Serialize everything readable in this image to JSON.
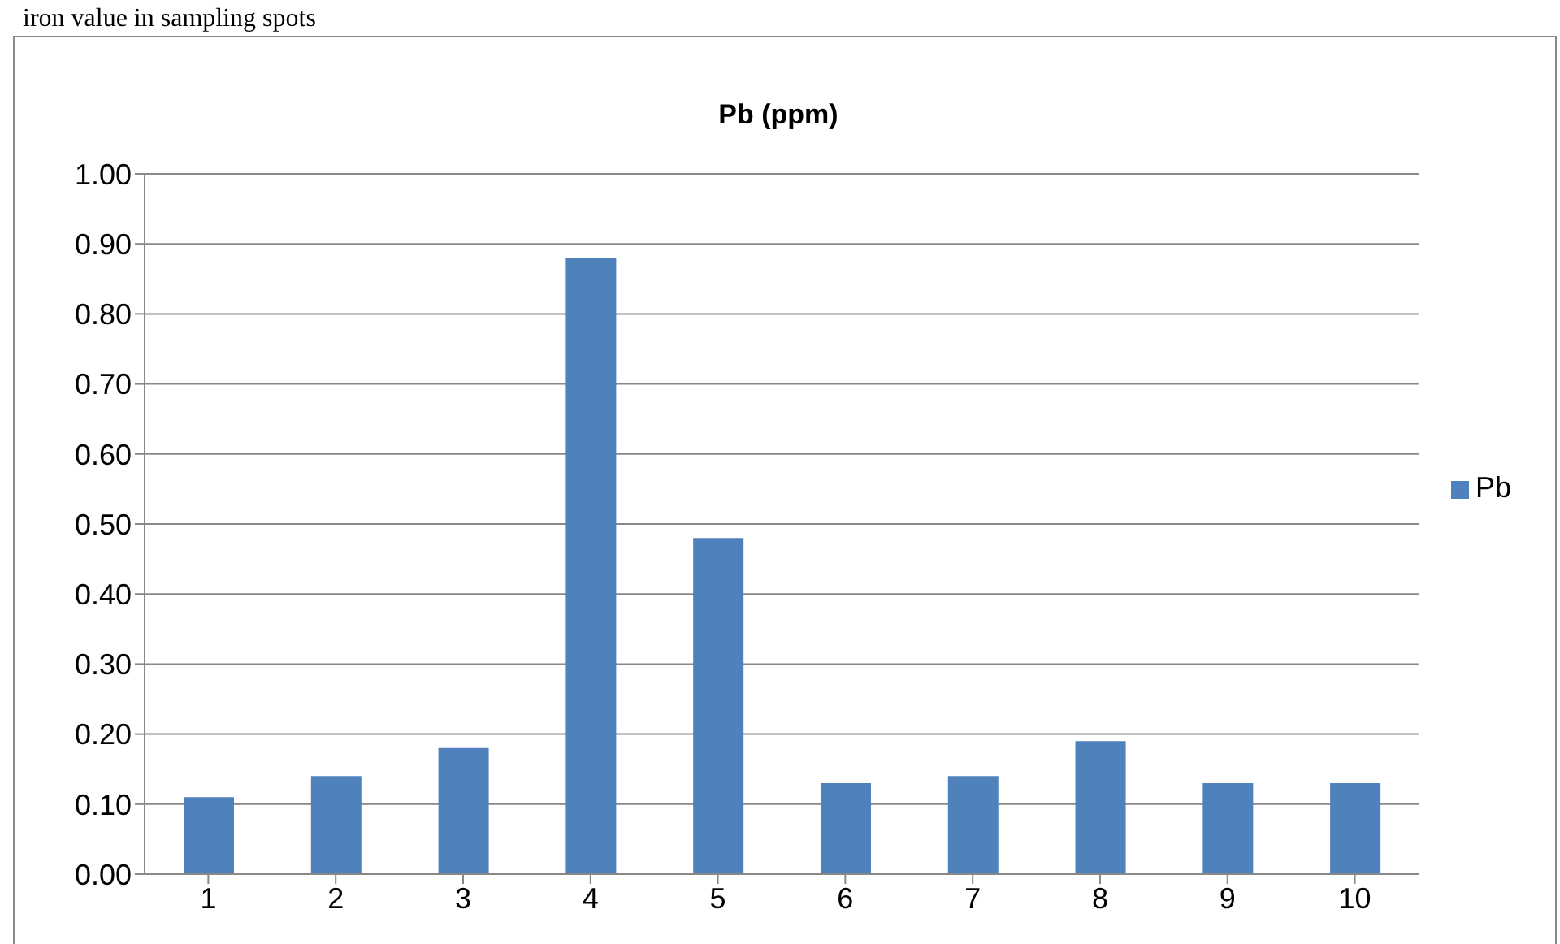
{
  "chart_data": {
    "type": "bar",
    "title": "Pb (ppm)",
    "annotations": [
      "iron value in sampling spots"
    ],
    "categories": [
      "1",
      "2",
      "3",
      "4",
      "5",
      "6",
      "7",
      "8",
      "9",
      "10"
    ],
    "series": [
      {
        "name": "Pb",
        "color": "#4f81bd",
        "values": [
          0.11,
          0.14,
          0.18,
          0.88,
          0.48,
          0.13,
          0.14,
          0.19,
          0.13,
          0.13
        ]
      }
    ],
    "ylim": [
      0,
      1
    ],
    "yticks": [
      {
        "value": 0,
        "label": "0.00"
      },
      {
        "value": 0.1,
        "label": "0.10"
      },
      {
        "value": 0.2,
        "label": "0.20"
      },
      {
        "value": 0.3,
        "label": "0.30"
      },
      {
        "value": 0.4,
        "label": "0.40"
      },
      {
        "value": 0.5,
        "label": "0.50"
      },
      {
        "value": 0.6,
        "label": "0.60"
      },
      {
        "value": 0.7,
        "label": "0.70"
      },
      {
        "value": 0.8,
        "label": "0.80"
      },
      {
        "value": 0.9,
        "label": "0.90"
      },
      {
        "value": 1,
        "label": "1.00"
      }
    ],
    "grid": "y",
    "legend": "right"
  }
}
